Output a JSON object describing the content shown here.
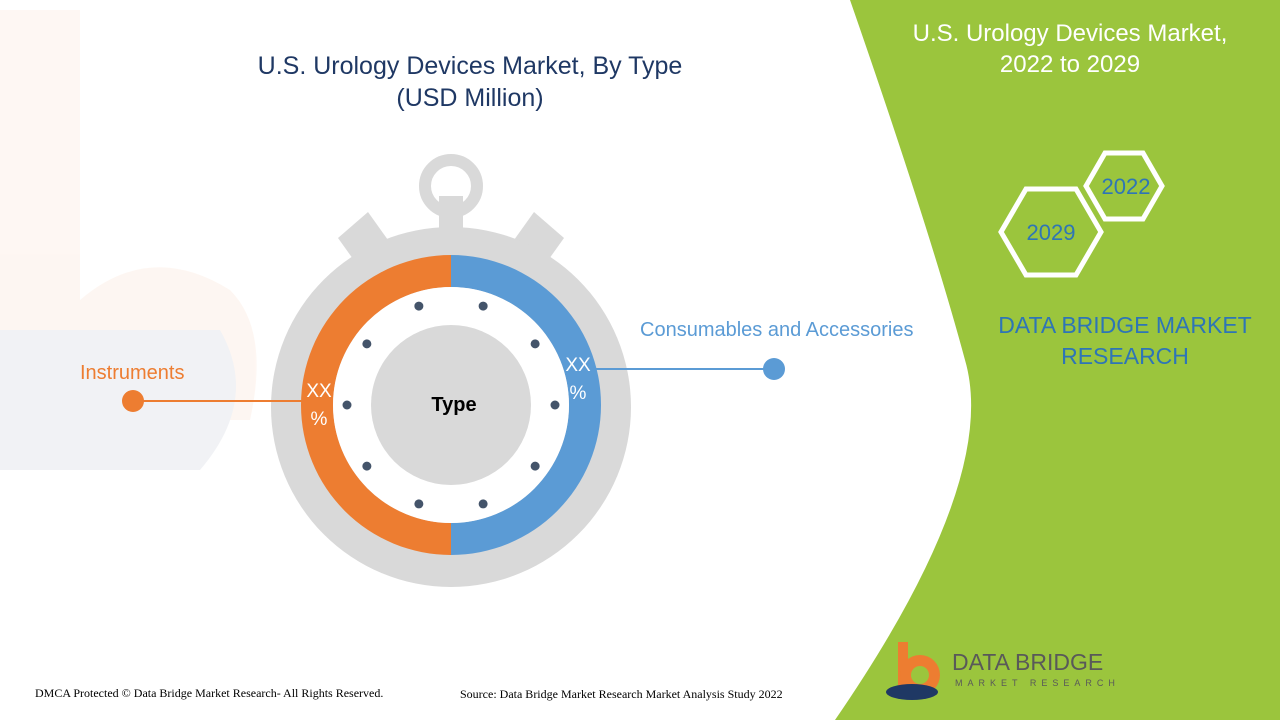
{
  "chart_title": {
    "line1": "U.S. Urology Devices Market, By Type",
    "line2": "(USD Million)"
  },
  "side_panel": {
    "title_line1": "U.S. Urology Devices Market,",
    "title_line2": "2022 to 2029",
    "hex_years": [
      "2022",
      "2029"
    ],
    "brand_line1": "DATA BRIDGE MARKET",
    "brand_line2": "RESEARCH"
  },
  "chart_data": {
    "type": "pie",
    "title": "U.S. Urology Devices Market, By Type",
    "subtitle": "(USD Million)",
    "center_label": "Type",
    "slices": [
      {
        "name": "Consumables and Accessories",
        "label": "XX\n%",
        "value": 50,
        "color": "#5b9bd5"
      },
      {
        "name": "Instruments",
        "label": "XX\n%",
        "value": 50,
        "color": "#ed7d31"
      }
    ]
  },
  "logo": {
    "name": "DATA BRIDGE",
    "tagline": "MARKET RESEARCH"
  },
  "footer": {
    "copyright": "DMCA Protected © Data Bridge Market Research- All Rights Reserved.",
    "source": "Source: Data Bridge Market Research Market Analysis Study 2022"
  },
  "colors": {
    "accent_green": "#9bc53d",
    "series_blue": "#5b9bd5",
    "series_orange": "#ed7d31",
    "title_navy": "#1f3864",
    "brand_blue": "#2e75b6",
    "stopwatch_gray": "#d9d9d9"
  }
}
